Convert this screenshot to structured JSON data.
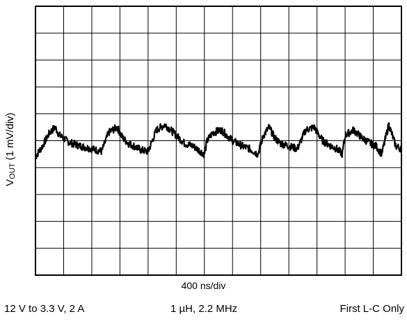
{
  "chart_data": {
    "type": "line",
    "title": "",
    "ylabel_main": "V",
    "ylabel_sub": "OUT",
    "ylabel_rest": " (1 mV/div)",
    "xlabel": "400 ns/div",
    "grid": true,
    "x_divisions": 13,
    "y_divisions": 10,
    "series": [
      {
        "color": "#000000",
        "x_div": [
          0,
          0.25,
          0.5,
          0.7,
          0.85,
          1.0,
          1.1,
          1.3,
          1.6,
          2.0,
          2.35,
          2.6,
          2.9,
          3.1,
          3.3,
          3.5,
          3.75,
          4.0,
          4.3,
          4.6,
          5.0,
          5.3,
          5.6,
          5.8,
          6.0,
          6.1,
          6.3,
          6.6,
          7.0,
          7.35,
          7.6,
          7.9,
          8.1,
          8.3,
          8.5,
          8.7,
          9.0,
          9.3,
          9.6,
          9.9,
          10.2,
          10.5,
          10.7,
          10.9,
          11.0,
          11.3,
          11.6,
          11.9,
          12.1,
          12.3,
          12.55,
          12.8,
          13.0
        ],
        "y_div": [
          -0.6,
          -0.2,
          0.3,
          0.5,
          0.2,
          0.1,
          0.0,
          -0.1,
          -0.2,
          -0.3,
          -0.4,
          0.3,
          0.5,
          0.1,
          -0.1,
          -0.2,
          -0.35,
          -0.4,
          0.4,
          0.6,
          0.2,
          -0.1,
          -0.2,
          -0.35,
          -0.5,
          0.0,
          0.3,
          0.4,
          0.0,
          -0.2,
          -0.3,
          -0.5,
          0.2,
          0.5,
          0.1,
          -0.1,
          -0.2,
          -0.3,
          0.4,
          0.5,
          0.0,
          -0.2,
          -0.3,
          -0.5,
          0.2,
          0.4,
          0.1,
          -0.1,
          -0.2,
          -0.5,
          0.6,
          -0.2,
          -0.3
        ]
      }
    ]
  },
  "annotations": {
    "conditions_1": "12 V to 3.3 V, 2 A",
    "conditions_2": "1 µH, 2.2 MHz",
    "conditions_3": "First L-C Only"
  }
}
